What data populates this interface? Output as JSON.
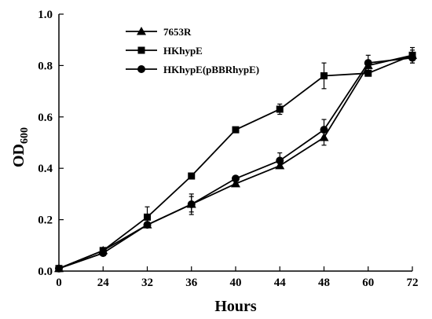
{
  "chart_data": {
    "type": "line",
    "xlabel": "Hours",
    "ylabel": "OD",
    "ylabel_sub": "600",
    "x_categories": [
      "0",
      "24",
      "32",
      "36",
      "40",
      "44",
      "48",
      "60",
      "72"
    ],
    "ylim": [
      0.0,
      1.0
    ],
    "y_ticks": [
      "0.0",
      "0.2",
      "0.4",
      "0.6",
      "0.8",
      "1.0"
    ],
    "grid": false,
    "legend_position": "top-left",
    "series": [
      {
        "name": "7653R",
        "marker": "triangle",
        "values": [
          0.01,
          0.08,
          0.18,
          0.26,
          0.34,
          0.41,
          0.52,
          0.8,
          0.84
        ],
        "errors": [
          0.005,
          0.01,
          0.01,
          0.03,
          0.01,
          0.01,
          0.03,
          0.02,
          0.02
        ]
      },
      {
        "name": "HKhypE",
        "marker": "square",
        "values": [
          0.01,
          0.08,
          0.21,
          0.37,
          0.55,
          0.63,
          0.76,
          0.77,
          0.84
        ],
        "errors": [
          0.005,
          0.01,
          0.04,
          0.01,
          0.01,
          0.02,
          0.05,
          0.01,
          0.03
        ]
      },
      {
        "name": "HKhypE(pBBRhypE)",
        "marker": "circle",
        "values": [
          0.01,
          0.07,
          0.18,
          0.26,
          0.36,
          0.43,
          0.55,
          0.81,
          0.83
        ],
        "errors": [
          0.005,
          0.01,
          0.01,
          0.04,
          0.01,
          0.03,
          0.04,
          0.03,
          0.02
        ]
      }
    ],
    "colors": {
      "line": "#000000",
      "axis": "#000000"
    }
  }
}
